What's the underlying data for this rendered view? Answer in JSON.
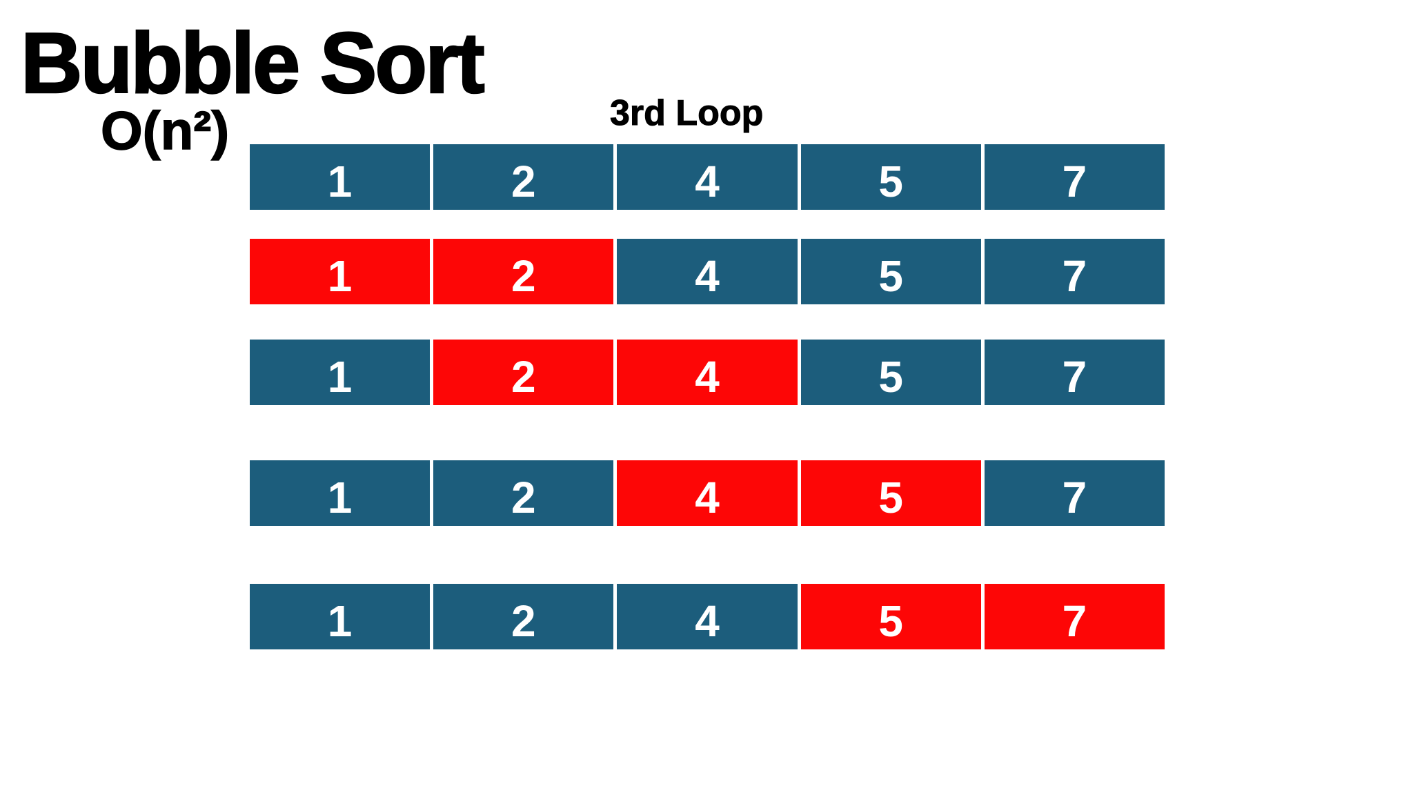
{
  "header": {
    "title": "Bubble Sort",
    "complexity": "O(n²)",
    "loop_label": "3rd Loop"
  },
  "colors": {
    "background": "#ffffff",
    "heading_text": "#000000",
    "cell_blue": "#1c5d7c",
    "cell_red": "#fd0606",
    "cell_text": "#ffffff"
  },
  "rows": [
    {
      "cells": [
        {
          "value": "1",
          "state": "normal"
        },
        {
          "value": "2",
          "state": "normal"
        },
        {
          "value": "4",
          "state": "normal"
        },
        {
          "value": "5",
          "state": "normal"
        },
        {
          "value": "7",
          "state": "normal"
        }
      ]
    },
    {
      "cells": [
        {
          "value": "1",
          "state": "active"
        },
        {
          "value": "2",
          "state": "active"
        },
        {
          "value": "4",
          "state": "normal"
        },
        {
          "value": "5",
          "state": "normal"
        },
        {
          "value": "7",
          "state": "normal"
        }
      ]
    },
    {
      "cells": [
        {
          "value": "1",
          "state": "normal"
        },
        {
          "value": "2",
          "state": "active"
        },
        {
          "value": "4",
          "state": "active"
        },
        {
          "value": "5",
          "state": "normal"
        },
        {
          "value": "7",
          "state": "normal"
        }
      ]
    },
    {
      "cells": [
        {
          "value": "1",
          "state": "normal"
        },
        {
          "value": "2",
          "state": "normal"
        },
        {
          "value": "4",
          "state": "active"
        },
        {
          "value": "5",
          "state": "active"
        },
        {
          "value": "7",
          "state": "normal"
        }
      ]
    },
    {
      "cells": [
        {
          "value": "1",
          "state": "normal"
        },
        {
          "value": "2",
          "state": "normal"
        },
        {
          "value": "4",
          "state": "normal"
        },
        {
          "value": "5",
          "state": "active"
        },
        {
          "value": "7",
          "state": "active"
        }
      ]
    }
  ]
}
